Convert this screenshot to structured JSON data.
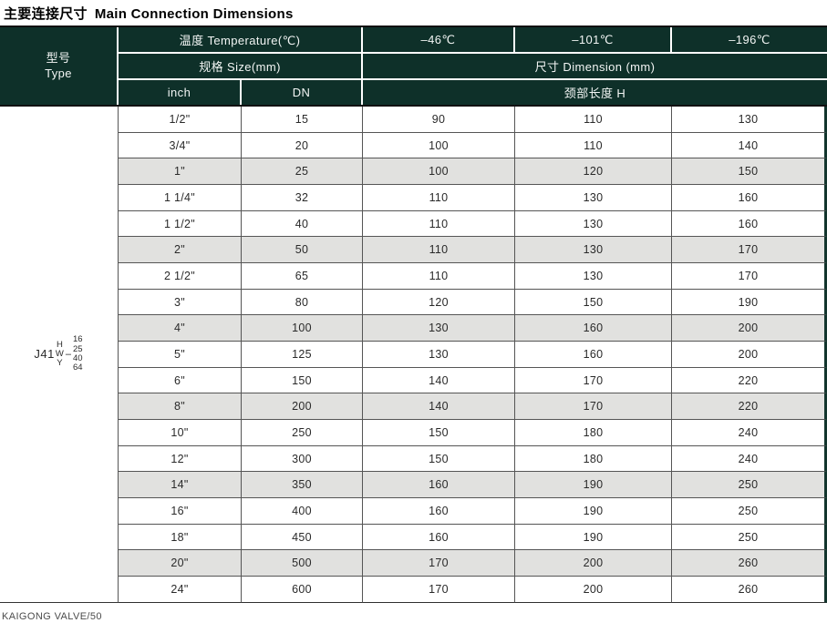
{
  "page": {
    "title_zh": "主要连接尺寸",
    "title_en": "Main Connection Dimensions",
    "footer": "KAIGONG VALVE/50"
  },
  "colors": {
    "header_bg": "#0e3029",
    "shaded_row": "#e1e1df",
    "border_dark": "#111111"
  },
  "table": {
    "header": {
      "type_zh": "型号",
      "type_en": "Type",
      "temperature": "温度 Temperature(℃)",
      "temp_columns": [
        "–46℃",
        "–101℃",
        "–196℃"
      ],
      "size": "规格 Size(mm)",
      "dimension": "尺寸 Dimension (mm)",
      "inch": "inch",
      "dn": "DN",
      "neck_length": "颈部长度 H"
    },
    "type_code": {
      "prefix": "J41",
      "letters": [
        "H",
        "W",
        "Y"
      ],
      "dash": "–",
      "numbers": [
        "16",
        "25",
        "40",
        "64"
      ]
    },
    "rows": [
      {
        "inch": "1/2\"",
        "dn": "15",
        "h46": "90",
        "h101": "110",
        "h196": "130",
        "shaded": false
      },
      {
        "inch": "3/4\"",
        "dn": "20",
        "h46": "100",
        "h101": "110",
        "h196": "140",
        "shaded": false
      },
      {
        "inch": "1\"",
        "dn": "25",
        "h46": "100",
        "h101": "120",
        "h196": "150",
        "shaded": true
      },
      {
        "inch": "1 1/4\"",
        "dn": "32",
        "h46": "110",
        "h101": "130",
        "h196": "160",
        "shaded": false
      },
      {
        "inch": "1 1/2\"",
        "dn": "40",
        "h46": "110",
        "h101": "130",
        "h196": "160",
        "shaded": false
      },
      {
        "inch": "2\"",
        "dn": "50",
        "h46": "110",
        "h101": "130",
        "h196": "170",
        "shaded": true
      },
      {
        "inch": "2 1/2\"",
        "dn": "65",
        "h46": "110",
        "h101": "130",
        "h196": "170",
        "shaded": false
      },
      {
        "inch": "3\"",
        "dn": "80",
        "h46": "120",
        "h101": "150",
        "h196": "190",
        "shaded": false
      },
      {
        "inch": "4\"",
        "dn": "100",
        "h46": "130",
        "h101": "160",
        "h196": "200",
        "shaded": true
      },
      {
        "inch": "5\"",
        "dn": "125",
        "h46": "130",
        "h101": "160",
        "h196": "200",
        "shaded": false
      },
      {
        "inch": "6\"",
        "dn": "150",
        "h46": "140",
        "h101": "170",
        "h196": "220",
        "shaded": false
      },
      {
        "inch": "8\"",
        "dn": "200",
        "h46": "140",
        "h101": "170",
        "h196": "220",
        "shaded": true
      },
      {
        "inch": "10\"",
        "dn": "250",
        "h46": "150",
        "h101": "180",
        "h196": "240",
        "shaded": false
      },
      {
        "inch": "12\"",
        "dn": "300",
        "h46": "150",
        "h101": "180",
        "h196": "240",
        "shaded": false
      },
      {
        "inch": "14\"",
        "dn": "350",
        "h46": "160",
        "h101": "190",
        "h196": "250",
        "shaded": true
      },
      {
        "inch": "16\"",
        "dn": "400",
        "h46": "160",
        "h101": "190",
        "h196": "250",
        "shaded": false
      },
      {
        "inch": "18\"",
        "dn": "450",
        "h46": "160",
        "h101": "190",
        "h196": "250",
        "shaded": false
      },
      {
        "inch": "20\"",
        "dn": "500",
        "h46": "170",
        "h101": "200",
        "h196": "260",
        "shaded": true
      },
      {
        "inch": "24\"",
        "dn": "600",
        "h46": "170",
        "h101": "200",
        "h196": "260",
        "shaded": false
      }
    ]
  }
}
